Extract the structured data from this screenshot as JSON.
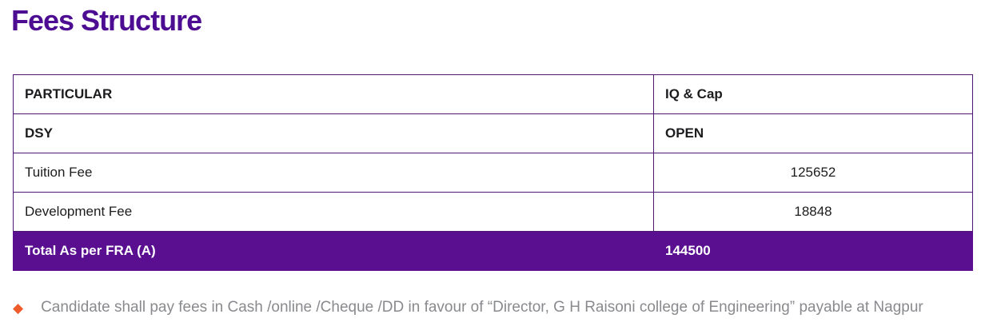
{
  "page": {
    "title": "Fees Structure",
    "colors": {
      "title_purple": "#4D0D92",
      "table_border_purple": "#4A1772",
      "total_row_background": "#5A0F91",
      "total_row_text": "#FFFFFF",
      "cell_text": "#1C1C1E",
      "note_text_gray": "#898A8D",
      "bullet_orange": "#EF5B2B"
    }
  },
  "table": {
    "rows": [
      {
        "label": "PARTICULAR",
        "value": "IQ & Cap"
      },
      {
        "label": "DSY",
        "value": "OPEN"
      },
      {
        "label": "Tuition Fee",
        "value": "125652"
      },
      {
        "label": "Development Fee",
        "value": "18848"
      }
    ],
    "total_row": {
      "label": "Total As per FRA (A)",
      "value": "144500"
    }
  },
  "note": {
    "bullet": "◆",
    "text": "Candidate shall pay fees in Cash /online /Cheque /DD in favour of “Director, G H Raisoni college of Engineering” payable at Nagpur"
  }
}
